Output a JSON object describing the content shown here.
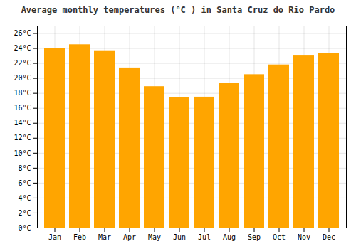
{
  "chart_data": {
    "type": "bar",
    "title": "Average monthly temperatures (°C ) in Santa Cruz do Rio Pardo",
    "categories": [
      "Jan",
      "Feb",
      "Mar",
      "Apr",
      "May",
      "Jun",
      "Jul",
      "Aug",
      "Sep",
      "Oct",
      "Nov",
      "Dec"
    ],
    "values": [
      24.0,
      24.5,
      23.7,
      21.4,
      18.9,
      17.4,
      17.5,
      19.3,
      20.5,
      21.8,
      23.0,
      23.3
    ],
    "color": "#FFA500",
    "ylim": [
      0,
      27
    ],
    "yticks": [
      {
        "value": 0,
        "label": "0°C"
      },
      {
        "value": 2,
        "label": "2°C"
      },
      {
        "value": 4,
        "label": "4°C"
      },
      {
        "value": 6,
        "label": "6°C"
      },
      {
        "value": 8,
        "label": "8°C"
      },
      {
        "value": 10,
        "label": "10°C"
      },
      {
        "value": 12,
        "label": "12°C"
      },
      {
        "value": 14,
        "label": "14°C"
      },
      {
        "value": 16,
        "label": "16°C"
      },
      {
        "value": 18,
        "label": "18°C"
      },
      {
        "value": 20,
        "label": "20°C"
      },
      {
        "value": 22,
        "label": "22°C"
      },
      {
        "value": 24,
        "label": "24°C"
      },
      {
        "value": 26,
        "label": "26°C"
      }
    ],
    "grid": true
  }
}
